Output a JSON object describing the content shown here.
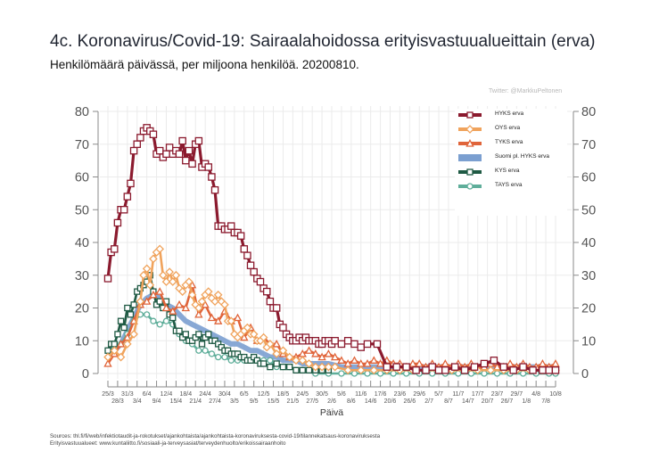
{
  "header": {
    "title": "4c. Koronavirus/Covid-19: Sairaalahoidossa erityisvastuualueittain (erva)",
    "subtitle": "Henkilömäärä päivässä, per miljoona henkilöä. 20200810.",
    "credit": "Twitter: @MarkkuPeltonen"
  },
  "footer": {
    "sources": "Sources: thl.fi/fi/web/infektiotaudit-ja-rokotukset/ajankohtaista/ajankohtaista-koronaviruksesta-covid-19/tilannekatsaus-koronaviruksesta",
    "erva": "Erityisvastuualueet: www.kuntaliitto.fi/sosiaali-ja-terveysasiat/terveydenhuolto/erikoissairaanhoito"
  },
  "chart_data": {
    "type": "line",
    "title": "4c. Koronavirus/Covid-19: Sairaalahoidossa erityisvastuualueittain (erva)",
    "xlabel": "Päivä",
    "ylabel": "",
    "ylim": [
      0,
      80
    ],
    "yticks": [
      0,
      10,
      20,
      30,
      40,
      50,
      60,
      70,
      80
    ],
    "xlim_days": [
      0,
      138
    ],
    "x_unit": "days since 25/3",
    "xtick_labels_top": [
      "25/3",
      "31/3",
      "6/4",
      "12/4",
      "18/4",
      "24/4",
      "30/4",
      "6/5",
      "12/5",
      "18/5",
      "24/5",
      "30/5",
      "5/6",
      "11/6",
      "17/6",
      "23/6",
      "29/6",
      "5/7",
      "11/7",
      "17/7",
      "23/7",
      "29/7",
      "4/8",
      "10/8"
    ],
    "xtick_labels_bottom": [
      "28/3",
      "3/4",
      "9/4",
      "15/4",
      "21/4",
      "27/4",
      "3/5",
      "9/5",
      "15/5",
      "21/5",
      "27/5",
      "2/6",
      "8/6",
      "14/6",
      "20/6",
      "26/6",
      "2/7",
      "8/7",
      "14/7",
      "20/7",
      "26/7",
      "1/8",
      "7/8"
    ],
    "grid": true,
    "legend_position": "top-right",
    "series": [
      {
        "name": "HYKS erva",
        "color": "#8b1a2e",
        "marker": "square",
        "x": [
          0,
          1,
          2,
          3,
          4,
          5,
          6,
          7,
          8,
          9,
          10,
          11,
          12,
          13,
          14,
          15,
          16,
          17,
          18,
          19,
          20,
          21,
          22,
          23,
          24,
          25,
          26,
          27,
          28,
          29,
          30,
          31,
          32,
          33,
          34,
          35,
          36,
          37,
          38,
          39,
          40,
          41,
          42,
          43,
          44,
          45,
          46,
          47,
          48,
          49,
          50,
          51,
          52,
          53,
          54,
          55,
          56,
          57,
          58,
          59,
          60,
          61,
          62,
          63,
          64,
          65,
          66,
          67,
          68,
          69,
          70,
          72,
          74,
          76,
          78,
          80,
          83,
          86,
          89,
          92,
          95,
          98,
          100,
          102,
          104,
          107,
          110,
          113,
          116,
          119,
          122,
          125,
          128,
          131,
          134,
          136,
          138
        ],
        "values": [
          29,
          37,
          38,
          46,
          50,
          50,
          54,
          58,
          68,
          70,
          72,
          74,
          75,
          74,
          73,
          67,
          68,
          66,
          67,
          69,
          67,
          68,
          67,
          71,
          65,
          68,
          64,
          70,
          71,
          63,
          64,
          63,
          60,
          56,
          45,
          45,
          44,
          44,
          45,
          43,
          43,
          42,
          38,
          36,
          33,
          31,
          29,
          28,
          26,
          25,
          22,
          20,
          20,
          15,
          14,
          12,
          11,
          10,
          10,
          11,
          10,
          11,
          10,
          10,
          10,
          9,
          9,
          10,
          10,
          9,
          10,
          9,
          10,
          9,
          8,
          9,
          9,
          2,
          2,
          2,
          1,
          1,
          2,
          1,
          1,
          2,
          1,
          2,
          3,
          4,
          2,
          1,
          2,
          1,
          1,
          1,
          1
        ]
      },
      {
        "name": "OYS erva",
        "color": "#f0a35c",
        "marker": "diamond",
        "x": [
          0,
          2,
          4,
          6,
          8,
          10,
          11,
          12,
          13,
          14,
          15,
          16,
          17,
          18,
          19,
          20,
          21,
          22,
          23,
          24,
          25,
          26,
          27,
          28,
          29,
          30,
          31,
          32,
          33,
          34,
          35,
          36,
          37,
          38,
          39,
          40,
          41,
          42,
          43,
          44,
          45,
          46,
          47,
          48,
          49,
          50,
          52,
          54,
          56,
          58,
          60,
          62,
          64,
          66,
          68,
          70,
          74,
          78,
          82,
          86,
          90,
          94,
          98,
          102,
          106,
          110,
          114,
          118,
          122,
          126,
          130,
          134,
          138
        ],
        "values": [
          5,
          7,
          5,
          9,
          12,
          22,
          30,
          32,
          27,
          35,
          37,
          38,
          30,
          28,
          31,
          28,
          30,
          26,
          25,
          27,
          28,
          24,
          21,
          20,
          22,
          24,
          25,
          23,
          22,
          24,
          22,
          21,
          16,
          16,
          12,
          11,
          12,
          13,
          14,
          12,
          12,
          10,
          10,
          11,
          8,
          9,
          6,
          7,
          5,
          4,
          4,
          3,
          2,
          2,
          2,
          2,
          1,
          1,
          1,
          1,
          1,
          1,
          1,
          1,
          1,
          1,
          1,
          1,
          1,
          1,
          1,
          1,
          1
        ]
      },
      {
        "name": "TYKS erva",
        "color": "#e0643a",
        "marker": "triangle",
        "x": [
          0,
          2,
          4,
          6,
          8,
          10,
          12,
          14,
          16,
          18,
          20,
          22,
          24,
          26,
          28,
          30,
          32,
          34,
          36,
          38,
          40,
          42,
          44,
          46,
          48,
          50,
          52,
          54,
          56,
          58,
          60,
          62,
          64,
          66,
          68,
          70,
          72,
          74,
          76,
          78,
          80,
          82,
          84,
          86,
          88,
          90,
          92,
          94,
          96,
          98,
          100,
          102,
          104,
          106,
          108,
          110,
          112,
          114,
          116,
          118,
          120,
          122,
          124,
          126,
          128,
          130,
          132,
          134,
          136,
          138
        ],
        "values": [
          3,
          6,
          9,
          11,
          16,
          21,
          22,
          24,
          25,
          20,
          19,
          21,
          20,
          27,
          18,
          21,
          17,
          16,
          19,
          16,
          17,
          11,
          14,
          10,
          11,
          9,
          9,
          6,
          5,
          5,
          6,
          7,
          6,
          5,
          6,
          5,
          4,
          3,
          4,
          3,
          3,
          4,
          3,
          4,
          3,
          3,
          2,
          3,
          3,
          2,
          3,
          2,
          3,
          2,
          3,
          2,
          3,
          2,
          2,
          3,
          2,
          2,
          3,
          2,
          3,
          2,
          2,
          3,
          2,
          3
        ]
      },
      {
        "name": "Suomi pl. HYKS erva",
        "color": "#7b9fd0",
        "marker": "none",
        "x": [
          0,
          2,
          4,
          6,
          8,
          10,
          12,
          14,
          16,
          18,
          20,
          22,
          24,
          26,
          28,
          30,
          32,
          34,
          36,
          38,
          40,
          42,
          44,
          46,
          48,
          50,
          52,
          54,
          56,
          58,
          60,
          64,
          68,
          72,
          76,
          80,
          84,
          88,
          92,
          96,
          100,
          104,
          108,
          112,
          116,
          120,
          124,
          128,
          132,
          136,
          138
        ],
        "values": [
          5,
          7,
          9,
          13,
          17,
          21,
          23,
          24,
          23,
          21,
          20,
          18,
          16,
          15,
          14,
          13,
          12,
          11,
          10,
          9,
          9,
          8,
          7,
          7,
          6,
          5,
          5,
          4,
          4,
          4,
          3,
          3,
          3,
          2,
          2,
          2,
          2,
          2,
          2,
          2,
          2,
          2,
          2,
          2,
          2,
          2,
          2,
          2,
          2,
          2,
          2
        ]
      },
      {
        "name": "KYS erva",
        "color": "#1f5a44",
        "marker": "square",
        "x": [
          0,
          1,
          2,
          3,
          4,
          5,
          6,
          7,
          8,
          9,
          10,
          11,
          12,
          13,
          14,
          15,
          16,
          17,
          18,
          19,
          20,
          21,
          22,
          23,
          24,
          25,
          26,
          27,
          28,
          29,
          30,
          31,
          32,
          33,
          34,
          35,
          36,
          37,
          38,
          39,
          40,
          41,
          42,
          43,
          44,
          45,
          46,
          47,
          48,
          50,
          52,
          54,
          56,
          58,
          60,
          62,
          64,
          66,
          68
        ],
        "values": [
          7,
          9,
          9,
          12,
          16,
          14,
          20,
          18,
          21,
          25,
          26,
          27,
          28,
          30,
          25,
          21,
          22,
          20,
          22,
          18,
          17,
          13,
          13,
          11,
          12,
          10,
          10,
          11,
          12,
          9,
          11,
          12,
          10,
          10,
          9,
          8,
          7,
          7,
          6,
          6,
          6,
          5,
          5,
          4,
          4,
          5,
          4,
          3,
          3,
          2,
          3,
          2,
          2,
          1,
          1,
          1,
          1,
          1,
          1
        ]
      },
      {
        "name": "TAYS erva",
        "color": "#5fae9a",
        "marker": "circle",
        "x": [
          0,
          2,
          4,
          6,
          8,
          10,
          12,
          14,
          16,
          18,
          20,
          22,
          24,
          26,
          28,
          30,
          32,
          34,
          36,
          38,
          40,
          42,
          44,
          46,
          48,
          50,
          52,
          54,
          56,
          58,
          60,
          64,
          68,
          72,
          76,
          80,
          84,
          88,
          92,
          96,
          100,
          104,
          108,
          112,
          116,
          120,
          124,
          128,
          132,
          136,
          138
        ],
        "values": [
          7,
          8,
          9,
          12,
          16,
          18,
          18,
          16,
          15,
          16,
          15,
          12,
          10,
          9,
          7,
          7,
          6,
          5,
          5,
          4,
          4,
          4,
          4,
          4,
          4,
          4,
          2,
          2,
          2,
          1,
          1,
          0,
          0,
          0,
          0,
          0,
          0,
          0,
          0,
          0,
          0,
          0,
          0,
          0,
          0,
          0,
          0,
          0,
          0,
          0,
          0
        ]
      }
    ]
  }
}
